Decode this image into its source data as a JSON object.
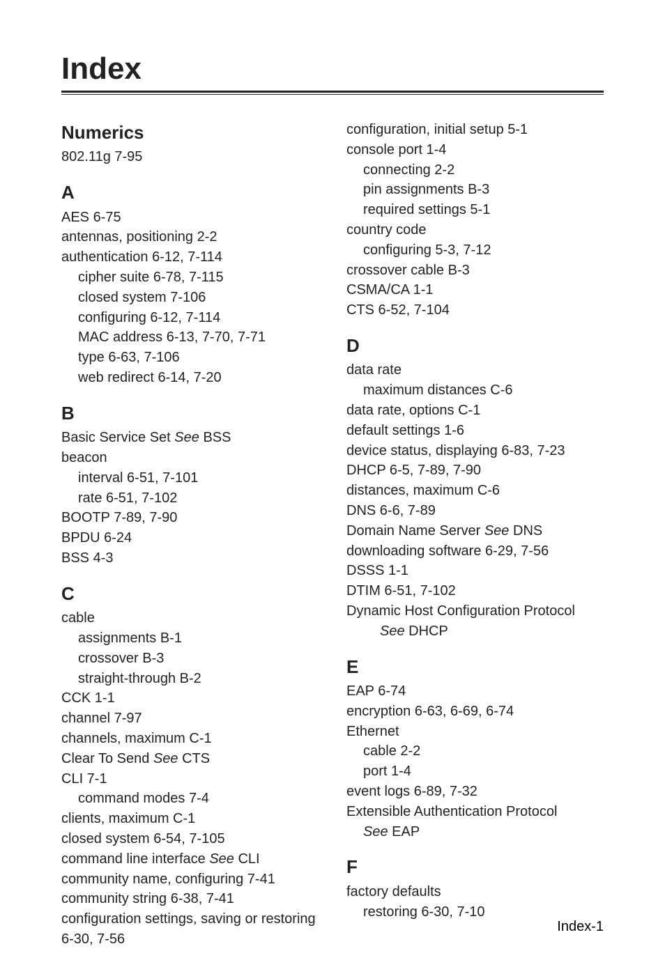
{
  "title": "Index",
  "footer": "Index-1",
  "left": {
    "numerics": {
      "head": "Numerics",
      "r0": "802.11g  7-95"
    },
    "A": {
      "head": "A",
      "r0": "AES  6-75",
      "r1": "antennas, positioning  2-2",
      "r2": "authentication  6-12, 7-114",
      "r3": "cipher suite  6-78, 7-115",
      "r4": "closed system  7-106",
      "r5": "configuring  6-12, 7-114",
      "r6": "MAC address  6-13, 7-70, 7-71",
      "r7": "type  6-63, 7-106",
      "r8": "web redirect  6-14, 7-20"
    },
    "B": {
      "head": "B",
      "r0a": "Basic Service Set ",
      "r0b": "See",
      "r0c": " BSS",
      "r1": "beacon",
      "r2": "interval  6-51, 7-101",
      "r3": "rate  6-51, 7-102",
      "r4": "BOOTP  7-89, 7-90",
      "r5": "BPDU  6-24",
      "r6": "BSS  4-3"
    },
    "C": {
      "head": "C",
      "r0": "cable",
      "r1": "assignments  B-1",
      "r2": "crossover  B-3",
      "r3": "straight-through  B-2",
      "r4": "CCK  1-1",
      "r5": "channel  7-97",
      "r6": "channels, maximum  C-1",
      "r7a": "Clear To Send ",
      "r7b": "See",
      "r7c": " CTS",
      "r8": "CLI  7-1",
      "r9": "command modes  7-4",
      "r10": "clients, maximum  C-1",
      "r11": "closed system  6-54, 7-105",
      "r12a": "command line interface ",
      "r12b": "See",
      "r12c": " CLI",
      "r13": "community name, configuring  7-41",
      "r14": "community string  6-38, 7-41",
      "r15": "configuration settings, saving or restoring  6-30, 7-56"
    }
  },
  "right": {
    "Ccont": {
      "r0": "configuration, initial setup  5-1",
      "r1": "console port  1-4",
      "r2": "connecting  2-2",
      "r3": "pin assignments  B-3",
      "r4": "required settings  5-1",
      "r5": "country code",
      "r6": "configuring  5-3, 7-12",
      "r7": "crossover cable  B-3",
      "r8": "CSMA/CA  1-1",
      "r9": "CTS  6-52, 7-104"
    },
    "D": {
      "head": "D",
      "r0": "data rate",
      "r1": "maximum distances  C-6",
      "r2": "data rate, options  C-1",
      "r3": "default settings  1-6",
      "r4": "device status, displaying  6-83, 7-23",
      "r5": "DHCP  6-5, 7-89, 7-90",
      "r6": "distances, maximum  C-6",
      "r7": "DNS  6-6, 7-89",
      "r8a": "Domain Name Server ",
      "r8b": "See",
      "r8c": " DNS",
      "r9": "downloading software  6-29, 7-56",
      "r10": "DSSS  1-1",
      "r11": "DTIM  6-51, 7-102",
      "r12": "Dynamic Host Configuration Protocol ",
      "r12b": "See",
      "r12c": " DHCP"
    },
    "E": {
      "head": "E",
      "r0": "EAP  6-74",
      "r1": "encryption  6-63, 6-69, 6-74",
      "r2": "Ethernet",
      "r3": "cable  2-2",
      "r4": "port  1-4",
      "r5": "event logs  6-89, 7-32",
      "r6a": "Extensible Authentication Protocol ",
      "r6b": "See",
      "r6c": " EAP"
    },
    "F": {
      "head": "F",
      "r0": "factory defaults",
      "r1": "restoring  6-30, 7-10"
    }
  }
}
